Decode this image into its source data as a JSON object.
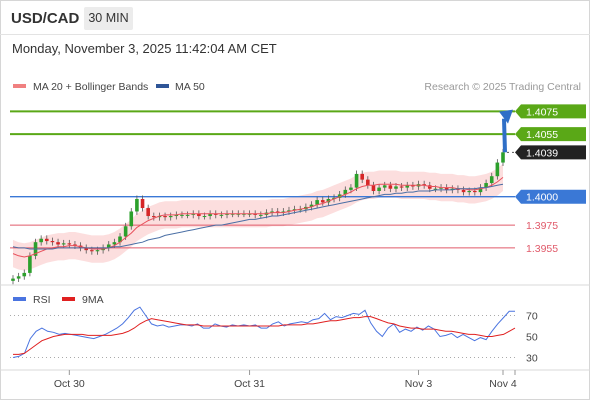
{
  "header": {
    "symbol": "USD/CAD",
    "timeframe": "30 MIN",
    "timestamp": "Monday, November 3, 2025 11:42:04 AM CET"
  },
  "colors": {
    "bull": "#2ca02c",
    "bear": "#d62728",
    "ma20": "#e8505b",
    "bands_fill": "#fbd3d3",
    "ma50": "#4a6fa5",
    "resistance": "#5aa817",
    "pivot": "#3a78d6",
    "support": "#e05a6a",
    "rsi": "#4a74e0",
    "rsi_ma": "#e02020"
  },
  "chart_data": [
    {
      "type": "candlestick",
      "legend": [
        {
          "name": "MA 20 + Bollinger Bands",
          "color": "#f08080"
        },
        {
          "name": "MA 50",
          "color": "#2f5597"
        }
      ],
      "watermark": "Research © 2025 Trading Central",
      "ylim": [
        1.3925,
        1.4085
      ],
      "x_ticks": [
        {
          "label": "Oct 30",
          "index": 10
        },
        {
          "label": "Oct 31",
          "index": 42
        },
        {
          "label": "Nov 3",
          "index": 72
        },
        {
          "label": "Nov 4",
          "index": 87
        }
      ],
      "levels": [
        {
          "value": 1.4075,
          "label": "1.4075",
          "kind": "resistance"
        },
        {
          "value": 1.4055,
          "label": "1.4055",
          "kind": "resistance"
        },
        {
          "value": 1.4039,
          "label": "1.4039",
          "kind": "current"
        },
        {
          "value": 1.4,
          "label": "1.4000",
          "kind": "pivot"
        },
        {
          "value": 1.3975,
          "label": "1.3975",
          "kind": "support"
        },
        {
          "value": 1.3955,
          "label": "1.3955",
          "kind": "support"
        }
      ],
      "close": [
        1.3928,
        1.393,
        1.3933,
        1.3948,
        1.396,
        1.3963,
        1.3961,
        1.396,
        1.3958,
        1.3959,
        1.3958,
        1.3957,
        1.3955,
        1.3953,
        1.3952,
        1.3953,
        1.3955,
        1.3958,
        1.396,
        1.3965,
        1.3974,
        1.3987,
        1.3998,
        1.399,
        1.3983,
        1.3982,
        1.3983,
        1.3982,
        1.3983,
        1.3984,
        1.3984,
        1.3984,
        1.3985,
        1.3983,
        1.3983,
        1.3985,
        1.3984,
        1.3984,
        1.3985,
        1.3985,
        1.3985,
        1.3985,
        1.3985,
        1.3984,
        1.3984,
        1.3986,
        1.3987,
        1.3986,
        1.3987,
        1.3988,
        1.3989,
        1.3989,
        1.3991,
        1.3993,
        1.3997,
        1.3995,
        1.3998,
        1.3999,
        1.4002,
        1.4006,
        1.4008,
        1.402,
        1.4015,
        1.401,
        1.4005,
        1.4008,
        1.401,
        1.4007,
        1.4009,
        1.4008,
        1.401,
        1.4009,
        1.4011,
        1.401,
        1.4007,
        1.4007,
        1.4008,
        1.4006,
        1.4007,
        1.4006,
        1.4004,
        1.4005,
        1.4004,
        1.4008,
        1.4012,
        1.4018,
        1.403,
        1.4039
      ],
      "ma20": [
        1.395,
        1.3948,
        1.3947,
        1.3948,
        1.395,
        1.3952,
        1.3954,
        1.3955,
        1.3956,
        1.3956,
        1.3957,
        1.3957,
        1.3956,
        1.3955,
        1.3954,
        1.3954,
        1.3954,
        1.3955,
        1.3957,
        1.396,
        1.3964,
        1.3968,
        1.3973,
        1.3976,
        1.3979,
        1.3981,
        1.3983,
        1.3984,
        1.3984,
        1.3984,
        1.3985,
        1.3985,
        1.3985,
        1.3985,
        1.3985,
        1.3985,
        1.3985,
        1.3985,
        1.3985,
        1.3985,
        1.3985,
        1.3985,
        1.3985,
        1.3985,
        1.3985,
        1.3985,
        1.3986,
        1.3986,
        1.3986,
        1.3987,
        1.3988,
        1.3989,
        1.399,
        1.3991,
        1.3993,
        1.3994,
        1.3996,
        1.3998,
        1.4,
        1.4002,
        1.4004,
        1.4007,
        1.4009,
        1.401,
        1.401,
        1.4011,
        1.4011,
        1.4011,
        1.4011,
        1.401,
        1.401,
        1.401,
        1.401,
        1.401,
        1.4009,
        1.4009,
        1.4008,
        1.4008,
        1.4008,
        1.4007,
        1.4007,
        1.4006,
        1.4006,
        1.4007,
        1.4008,
        1.401,
        1.4013,
        1.4017
      ],
      "ma50": [
        1.3956,
        1.3955,
        1.3955,
        1.3954,
        1.3954,
        1.3954,
        1.3954,
        1.3954,
        1.3955,
        1.3955,
        1.3955,
        1.3955,
        1.3955,
        1.3955,
        1.3955,
        1.3955,
        1.3955,
        1.3955,
        1.3956,
        1.3956,
        1.3957,
        1.3958,
        1.3959,
        1.396,
        1.3962,
        1.3963,
        1.3964,
        1.3966,
        1.3967,
        1.3968,
        1.3969,
        1.397,
        1.3971,
        1.3972,
        1.3973,
        1.3974,
        1.3975,
        1.3975,
        1.3976,
        1.3977,
        1.3978,
        1.3979,
        1.398,
        1.398,
        1.3981,
        1.3982,
        1.3983,
        1.3983,
        1.3984,
        1.3985,
        1.3986,
        1.3987,
        1.3988,
        1.3989,
        1.399,
        1.3991,
        1.3992,
        1.3993,
        1.3994,
        1.3995,
        1.3996,
        1.3997,
        1.3998,
        1.3999,
        1.4,
        1.4001,
        1.4002,
        1.4002,
        1.4003,
        1.4003,
        1.4004,
        1.4004,
        1.4005,
        1.4005,
        1.4005,
        1.4006,
        1.4006,
        1.4006,
        1.4006,
        1.4007,
        1.4007,
        1.4007,
        1.4007,
        1.4008,
        1.4008,
        1.4009,
        1.401,
        1.4011
      ]
    },
    {
      "type": "line",
      "legend": [
        {
          "name": "RSI",
          "color": "#4a74e0"
        },
        {
          "name": "9MA",
          "color": "#e02020"
        }
      ],
      "ylim": [
        20,
        80
      ],
      "y_ticks": [
        70,
        50,
        30
      ],
      "rsi": [
        30,
        31,
        34,
        48,
        55,
        58,
        55,
        54,
        52,
        53,
        52,
        51,
        50,
        49,
        48,
        50,
        52,
        55,
        58,
        62,
        68,
        75,
        78,
        70,
        62,
        60,
        61,
        59,
        60,
        61,
        61,
        60,
        62,
        58,
        58,
        62,
        60,
        59,
        61,
        60,
        61,
        60,
        61,
        58,
        58,
        62,
        64,
        60,
        62,
        63,
        64,
        63,
        66,
        67,
        72,
        66,
        69,
        68,
        70,
        72,
        71,
        75,
        63,
        55,
        50,
        58,
        62,
        54,
        57,
        55,
        59,
        56,
        60,
        57,
        50,
        51,
        53,
        49,
        52,
        49,
        46,
        49,
        47,
        55,
        62,
        68,
        74,
        74
      ],
      "ma9": [
        33,
        33,
        34,
        38,
        42,
        46,
        48,
        50,
        51,
        52,
        52,
        52,
        52,
        51,
        51,
        51,
        51,
        51,
        52,
        53,
        55,
        58,
        62,
        65,
        67,
        66,
        65,
        64,
        63,
        62,
        61,
        61,
        61,
        60,
        60,
        60,
        60,
        60,
        60,
        60,
        60,
        60,
        60,
        60,
        60,
        60,
        60,
        61,
        61,
        61,
        61,
        62,
        62,
        63,
        64,
        65,
        65,
        66,
        67,
        68,
        68,
        69,
        69,
        67,
        65,
        63,
        62,
        60,
        59,
        58,
        58,
        57,
        57,
        57,
        56,
        55,
        55,
        54,
        53,
        52,
        52,
        51,
        50,
        50,
        51,
        52,
        55,
        58
      ]
    }
  ]
}
